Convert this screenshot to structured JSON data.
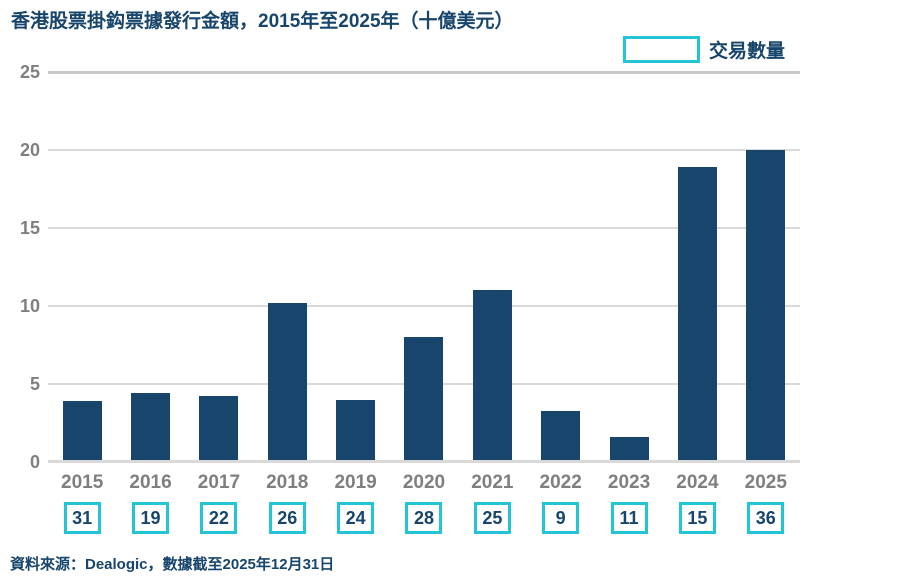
{
  "title": "香港股票掛鈎票據發行金額，2015年至2025年（十億美元）",
  "legend": {
    "label": "交易數量"
  },
  "source": "資料來源：Dealogic，數據截至2025年12月31日",
  "colors": {
    "navy": "#17456B",
    "cyan": "#22C4D6",
    "axis_text": "#7F7F7F",
    "gridline": "#D9D9D9",
    "gridline_major": "#C6C9CC",
    "background": "#FFFFFF"
  },
  "chart_data": {
    "type": "bar",
    "title": "香港股票掛鈎票據發行金額，2015年至2025年（十億美元）",
    "categories": [
      "2015",
      "2016",
      "2017",
      "2018",
      "2019",
      "2020",
      "2021",
      "2022",
      "2023",
      "2024",
      "2025"
    ],
    "series": [
      {
        "display": "bars",
        "values": [
          3.9,
          4.4,
          4.2,
          10.2,
          4.0,
          8.0,
          11.0,
          3.3,
          1.6,
          18.9,
          20.0
        ]
      },
      {
        "name": "交易數量",
        "display": "boxed-labels",
        "values": [
          31,
          19,
          22,
          26,
          24,
          28,
          25,
          9,
          11,
          15,
          36
        ]
      }
    ],
    "xlabel": "",
    "ylabel": "",
    "ylim": [
      0,
      25
    ],
    "yticks": [
      0,
      5,
      10,
      15,
      20,
      25
    ],
    "grid": true,
    "legend_position": "top-right"
  }
}
